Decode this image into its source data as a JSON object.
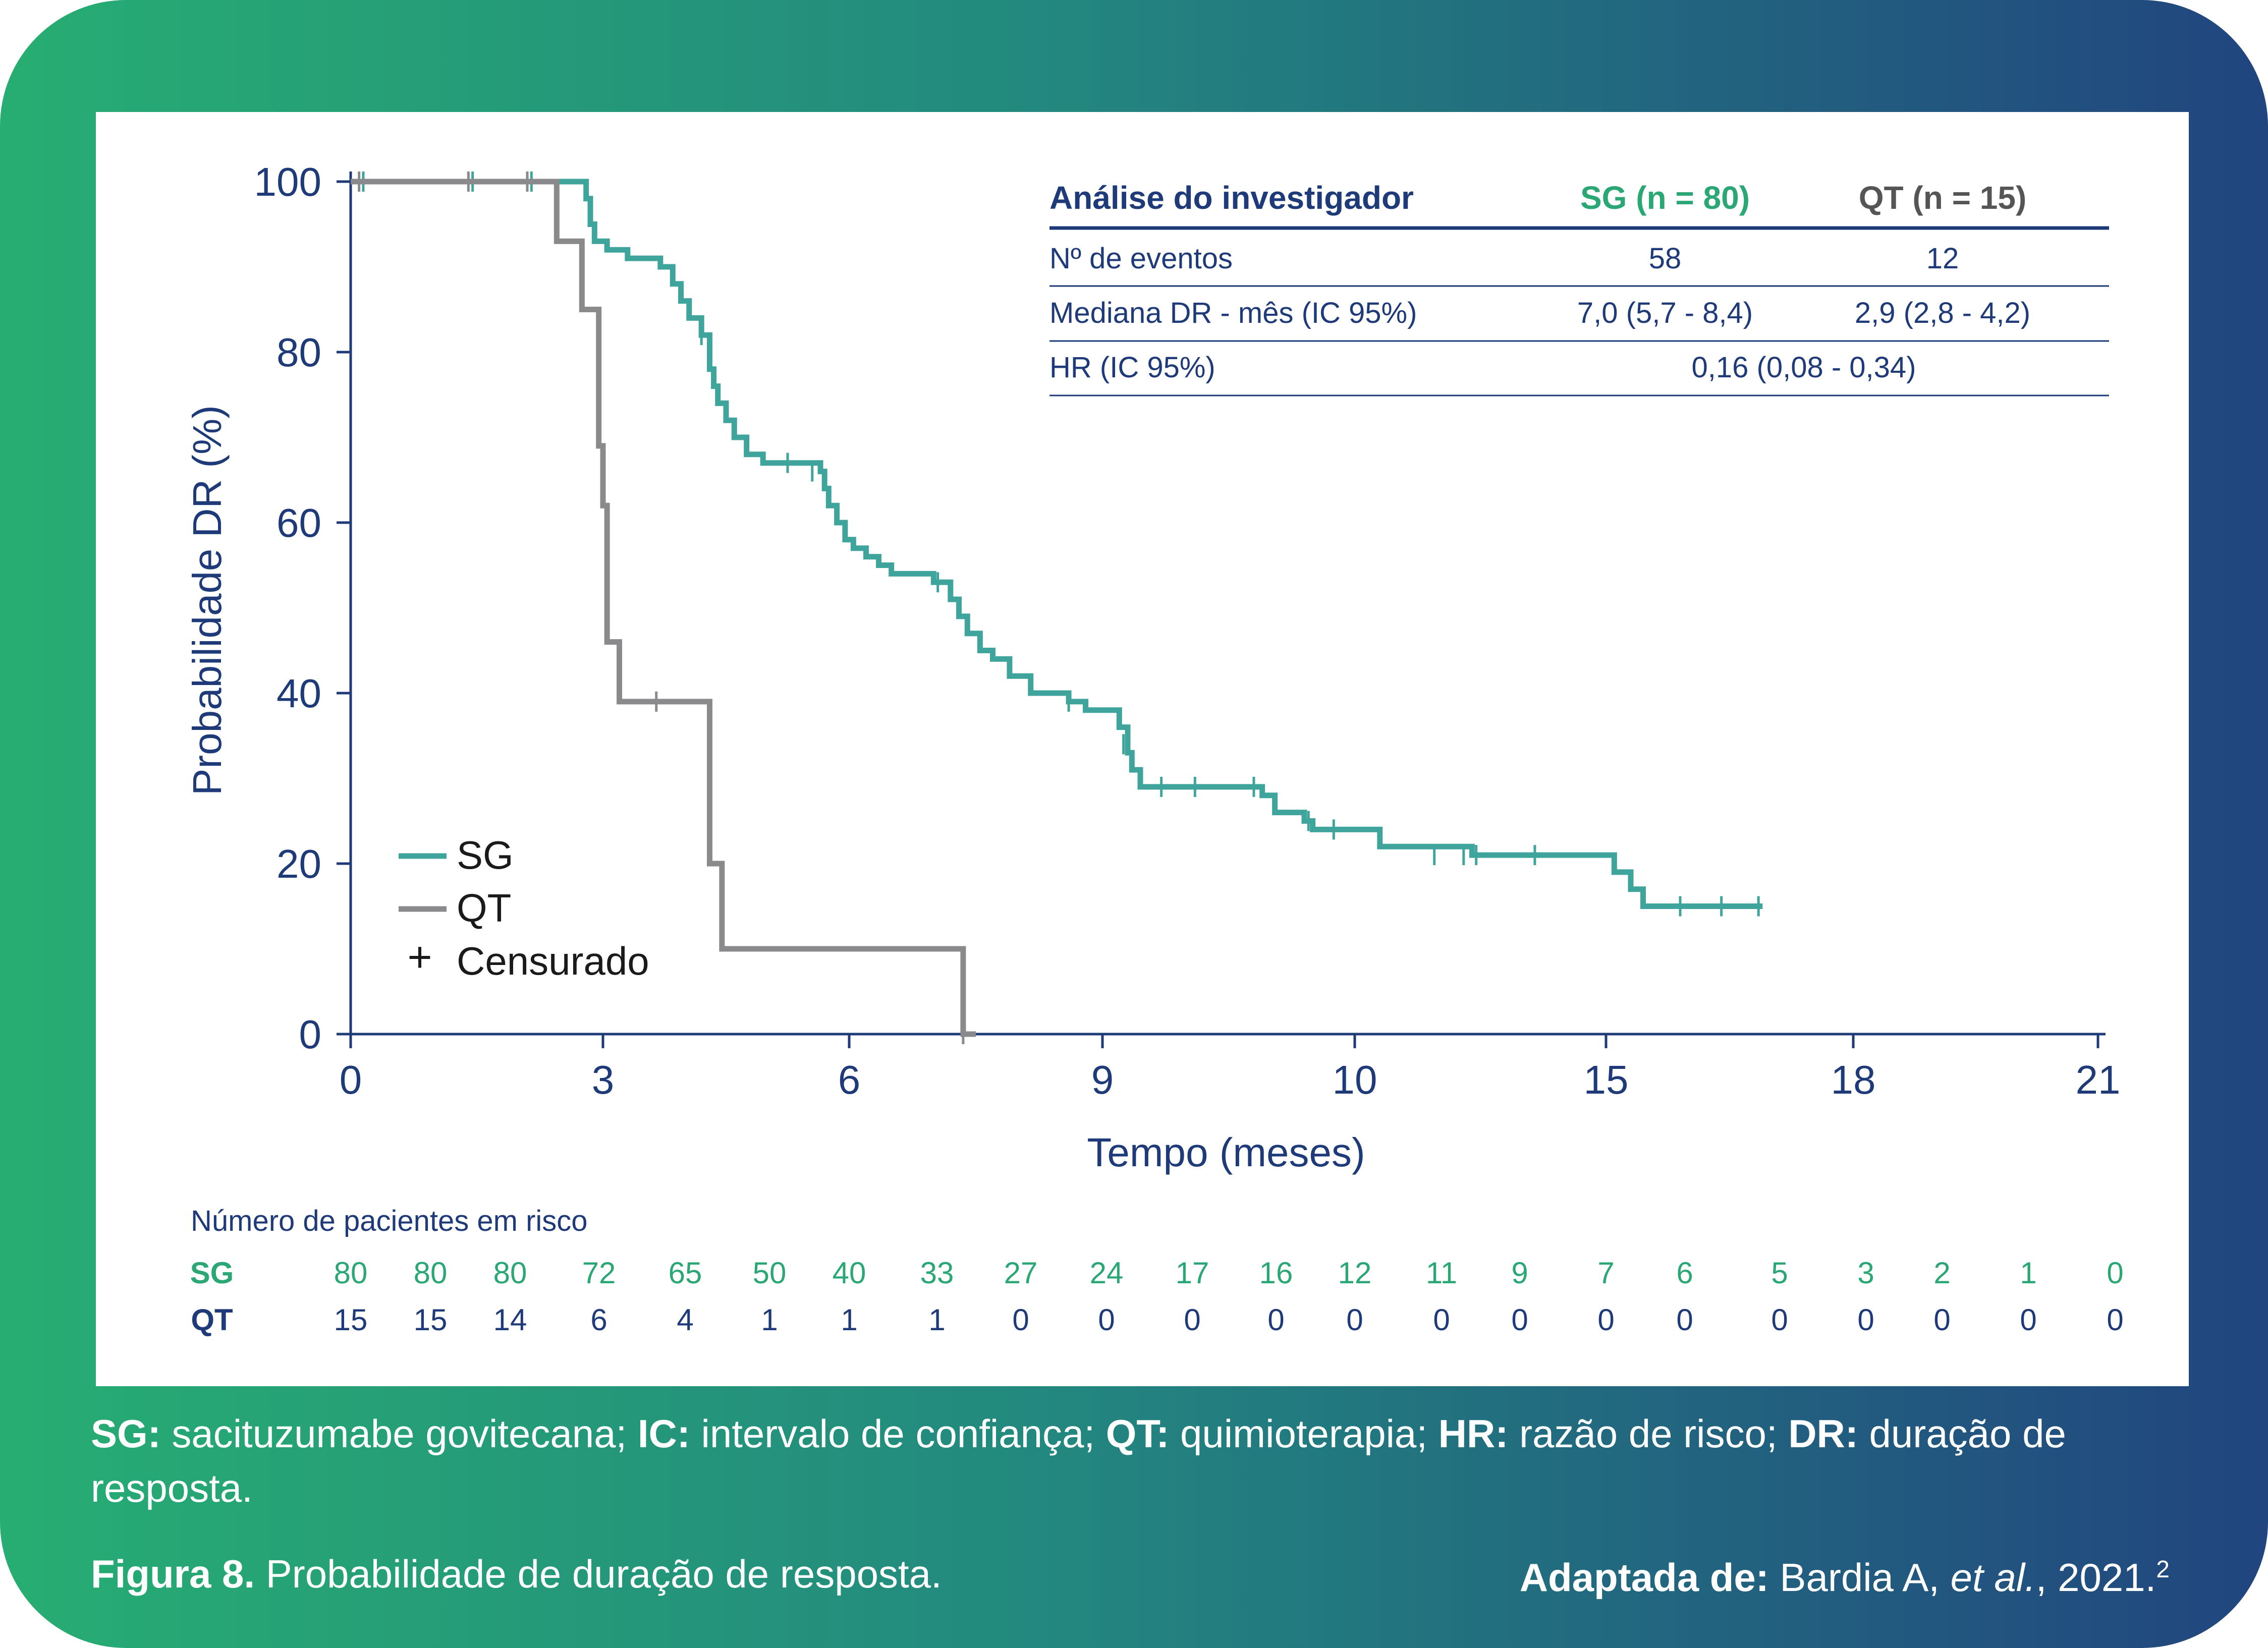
{
  "chart_data": {
    "type": "line",
    "subtype": "kaplan-meier",
    "xlabel": "Tempo (meses)",
    "ylabel": "Probabilidade DR (%)",
    "ylim": [
      0,
      100
    ],
    "yticks": [
      0,
      20,
      40,
      60,
      80,
      100
    ],
    "xticks": [
      "0",
      "3",
      "6",
      "9",
      "10",
      "15",
      "18",
      "21"
    ],
    "legend": {
      "position": "bottom-left",
      "items": [
        "SG",
        "QT",
        "Censurado"
      ],
      "censor_symbol": "+"
    },
    "series": [
      {
        "name": "SG",
        "color": "#3fa59c",
        "steps": [
          [
            0,
            100
          ],
          [
            2.6,
            100
          ],
          [
            2.8,
            98
          ],
          [
            2.85,
            95
          ],
          [
            2.9,
            93
          ],
          [
            3.05,
            92
          ],
          [
            3.3,
            91
          ],
          [
            3.7,
            90
          ],
          [
            3.85,
            88
          ],
          [
            3.95,
            86
          ],
          [
            4.05,
            84
          ],
          [
            4.2,
            82
          ],
          [
            4.3,
            78
          ],
          [
            4.35,
            76
          ],
          [
            4.4,
            74
          ],
          [
            4.5,
            72
          ],
          [
            4.6,
            70
          ],
          [
            4.75,
            68
          ],
          [
            4.95,
            67
          ],
          [
            5.65,
            66
          ],
          [
            5.7,
            64
          ],
          [
            5.75,
            62
          ],
          [
            5.85,
            60
          ],
          [
            5.95,
            58
          ],
          [
            6.05,
            57
          ],
          [
            6.2,
            56
          ],
          [
            6.35,
            55
          ],
          [
            6.5,
            54
          ],
          [
            7.0,
            53
          ],
          [
            7.2,
            51
          ],
          [
            7.3,
            49
          ],
          [
            7.4,
            47
          ],
          [
            7.55,
            45
          ],
          [
            7.7,
            44
          ],
          [
            7.9,
            42
          ],
          [
            8.15,
            40
          ],
          [
            8.6,
            39
          ],
          [
            8.8,
            38
          ],
          [
            9.2,
            36
          ],
          [
            9.3,
            33
          ],
          [
            9.35,
            31
          ],
          [
            9.45,
            29
          ],
          [
            10.9,
            28
          ],
          [
            11.05,
            26
          ],
          [
            11.4,
            25
          ],
          [
            11.5,
            24
          ],
          [
            12.3,
            22
          ],
          [
            13.4,
            21
          ],
          [
            15.1,
            19
          ],
          [
            15.3,
            17
          ],
          [
            15.45,
            15
          ],
          [
            16.9,
            15
          ]
        ],
        "censored": [
          [
            0.15,
            100
          ],
          [
            1.45,
            100
          ],
          [
            2.15,
            100
          ],
          [
            2.9,
            94
          ],
          [
            4.2,
            82
          ],
          [
            5.25,
            67
          ],
          [
            5.55,
            66
          ],
          [
            7.05,
            53
          ],
          [
            8.6,
            39
          ],
          [
            9.25,
            34
          ],
          [
            9.7,
            29
          ],
          [
            10.1,
            29
          ],
          [
            10.8,
            29
          ],
          [
            11.45,
            25
          ],
          [
            11.75,
            24
          ],
          [
            12.95,
            21
          ],
          [
            13.3,
            21
          ],
          [
            13.45,
            21
          ],
          [
            14.15,
            21
          ],
          [
            15.9,
            15
          ],
          [
            16.4,
            15
          ],
          [
            16.85,
            15
          ]
        ]
      },
      {
        "name": "QT",
        "color": "#8a8a8c",
        "steps": [
          [
            0,
            100
          ],
          [
            2.4,
            100
          ],
          [
            2.45,
            93
          ],
          [
            2.75,
            85
          ],
          [
            2.95,
            69
          ],
          [
            3.0,
            62
          ],
          [
            3.05,
            46
          ],
          [
            3.2,
            39
          ],
          [
            4.25,
            39
          ],
          [
            4.3,
            20
          ],
          [
            4.45,
            10
          ],
          [
            7.3,
            10
          ],
          [
            7.35,
            0
          ],
          [
            7.5,
            0
          ]
        ],
        "censored": [
          [
            0.1,
            100
          ],
          [
            1.4,
            100
          ],
          [
            2.1,
            100
          ],
          [
            3.65,
            39
          ],
          [
            7.35,
            0
          ]
        ]
      }
    ],
    "table": {
      "header": [
        "Análise do investigador",
        "SG (n = 80)",
        "QT (n = 15)"
      ],
      "rows": [
        [
          "Nº de eventos",
          "58",
          "12"
        ],
        [
          "Mediana DR - mês (IC 95%)",
          "7,0 (5,7 - 8,4)",
          "2,9 (2,8 - 4,2)"
        ],
        [
          "HR (IC 95%)",
          "0,16 (0,08 - 0,34)"
        ]
      ]
    },
    "at_risk": {
      "title": "Número de pacientes em risco",
      "groups": [
        {
          "label": "SG",
          "values": [
            "80",
            "80",
            "80",
            "72",
            "65",
            "50",
            "40",
            "33",
            "27",
            "24",
            "17",
            "16",
            "12",
            "11",
            "9",
            "7",
            "6",
            "5",
            "3",
            "2",
            "1",
            "0"
          ]
        },
        {
          "label": "QT",
          "values": [
            "15",
            "15",
            "14",
            "6",
            "4",
            "1",
            "1",
            "1",
            "0",
            "0",
            "0",
            "0",
            "0",
            "0",
            "0",
            "0",
            "0",
            "0",
            "0",
            "0",
            "0",
            "0"
          ]
        }
      ]
    }
  },
  "captions": {
    "definitions": [
      {
        "term": "SG:",
        "text": " sacituzumabe govitecana; "
      },
      {
        "term": "IC:",
        "text": " intervalo de confiança; "
      },
      {
        "term": "QT:",
        "text": " quimioterapia; "
      },
      {
        "term": "HR:",
        "text": " razão de risco; "
      },
      {
        "term": "DR:",
        "text": " duração de resposta."
      }
    ],
    "figure_label": "Figura 8.",
    "figure_text": " Probabilidade de duração de resposta.",
    "source_label": "Adaptada de:",
    "source_author": " Bardia A, ",
    "source_etal": "et al.",
    "source_year": ", 2021.",
    "source_ref": "2"
  },
  "colors": {
    "navy": "#1e3a78",
    "teal": "#3fa59c",
    "gray": "#8a8a8c",
    "green_label": "#2aa774"
  }
}
